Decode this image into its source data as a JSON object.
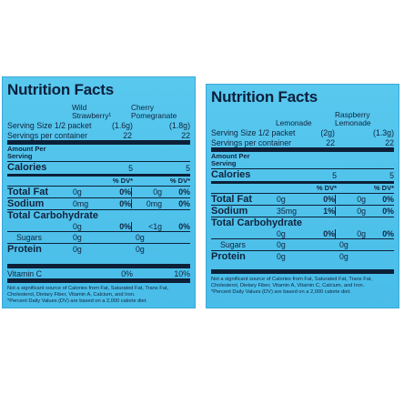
{
  "left": {
    "title": "Nutrition Facts",
    "flavor1": "Wild\nStrawberry¹",
    "flavor2": "Cherry\nPomegranate",
    "serving_size_label": "Serving Size 1/2 packet",
    "serving_size_1": "(1.6g)",
    "serving_size_2": "(1.8g)",
    "servings_label": "Servings per container",
    "servings_1": "22",
    "servings_2": "22",
    "amount_per_serving": "Amount Per\nServing",
    "calories_label": "Calories",
    "calories_1": "5",
    "calories_2": "5",
    "dv_label": "% DV*",
    "total_fat_label": "Total Fat",
    "total_fat_1": "0g",
    "total_fat_dv_1": "0%",
    "total_fat_2": "0g",
    "total_fat_dv_2": "0%",
    "sodium_label": "Sodium",
    "sodium_1": "0mg",
    "sodium_dv_1": "0%",
    "sodium_2": "0mg",
    "sodium_dv_2": "0%",
    "carb_label": "Total Carbohydrate",
    "carb_1": "0g",
    "carb_dv_1": "0%",
    "carb_2": "<1g",
    "carb_dv_2": "0%",
    "sugars_label": "Sugars",
    "sugars_1": "0g",
    "sugars_2": "0g",
    "protein_label": "Protein",
    "protein_1": "0g",
    "protein_2": "0g",
    "vitc_label": "Vitamin C",
    "vitc_1": "0%",
    "vitc_2": "10%",
    "footnote": "Not a significant source of Calories from Fat, Saturated Fat, Trans Fat, Cholesterol, Dietary Fiber, Vitamin A, Calcium, and Iron.\n*Percent Daily Values (DV) are based on a 2,000 calorie diet."
  },
  "right": {
    "title": "Nutrition Facts",
    "flavor1": "Lemonade",
    "flavor2": "Raspberry\nLemonade",
    "serving_size_label": "Serving Size 1/2 packet",
    "serving_size_1": "(2g)",
    "serving_size_2": "(1.3g)",
    "servings_label": "Servings per container",
    "servings_1": "22",
    "servings_2": "22",
    "amount_per_serving": "Amount Per\nServing",
    "calories_label": "Calories",
    "calories_1": "5",
    "calories_2": "5",
    "dv_label": "% DV*",
    "total_fat_label": "Total Fat",
    "total_fat_1": "0g",
    "total_fat_dv_1": "0%",
    "total_fat_2": "0g",
    "total_fat_dv_2": "0%",
    "sodium_label": "Sodium",
    "sodium_1": "35mg",
    "sodium_dv_1": "1%",
    "sodium_2": "0g",
    "sodium_dv_2": "0%",
    "carb_label": "Total Carbohydrate",
    "carb_1": "0g",
    "carb_dv_1": "0%",
    "carb_2": "0g",
    "carb_dv_2": "0%",
    "sugars_label": "Sugars",
    "sugars_1": "0g",
    "sugars_2": "0g",
    "protein_label": "Protein",
    "protein_1": "0g",
    "protein_2": "0g",
    "footnote": "Not a significant source of Calories from Fat, Saturated Fat, Trans Fat, Cholesterol, Dietary Fiber, Vitamin A, Vitamin C, Calcium, and Iron.\n*Percent Daily Values (DV) are based on a 2,000 calorie diet."
  }
}
